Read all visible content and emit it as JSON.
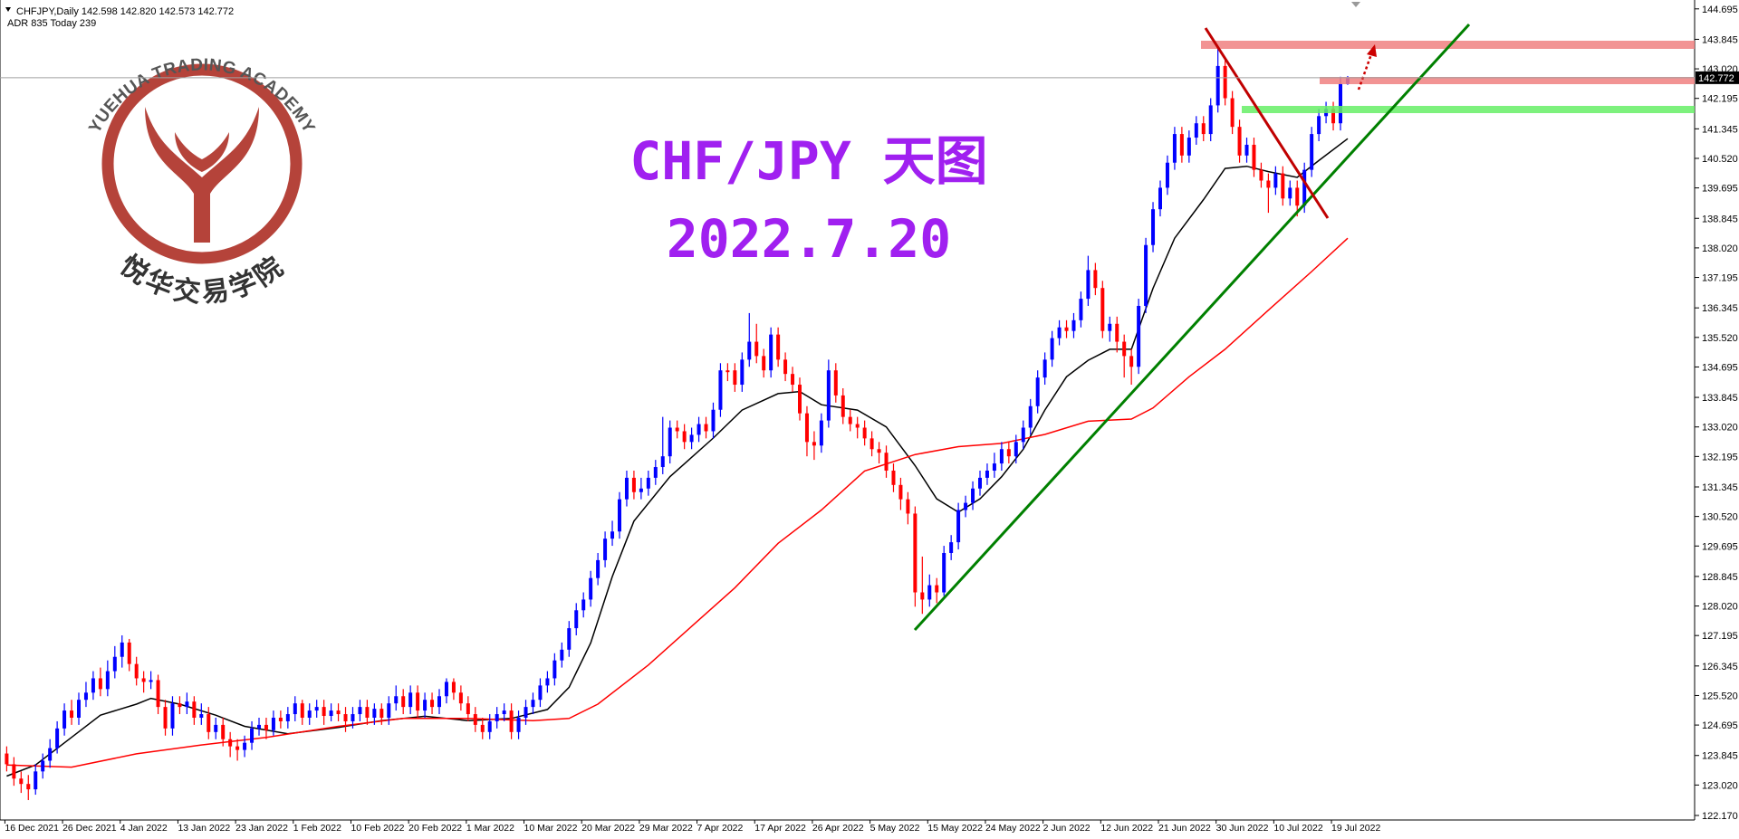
{
  "chart_data": {
    "type": "candlestick",
    "header": "CHFJPY,Daily  142.598 142.820 142.573 142.772",
    "adr": "ADR 835  Today 239",
    "watermark_en": "YUEHUA TRADING ACADEMY",
    "watermark_cn": "悦华交易学院",
    "title": "CHF/JPY 天图",
    "subtitle": "2022.7.20",
    "up_color": "#0000ff",
    "down_color": "#ff0000",
    "categories": [
      "16 Dec 2021",
      null,
      null,
      null,
      null,
      null,
      null,
      null,
      "26 Dec 2021",
      null,
      null,
      null,
      null,
      null,
      null,
      null,
      "4 Jan 2022",
      null,
      null,
      null,
      null,
      null,
      null,
      null,
      "13 Jan 2022",
      null,
      null,
      null,
      null,
      null,
      null,
      null,
      "23 Jan 2022",
      null,
      null,
      null,
      null,
      null,
      null,
      null,
      "1 Feb 2022",
      null,
      null,
      null,
      null,
      null,
      null,
      null,
      "10 Feb 2022",
      null,
      null,
      null,
      null,
      null,
      null,
      null,
      "20 Feb 2022",
      null,
      null,
      null,
      null,
      null,
      null,
      null,
      "1 Mar 2022",
      null,
      null,
      null,
      null,
      null,
      null,
      null,
      "10 Mar 2022",
      null,
      null,
      null,
      null,
      null,
      null,
      null,
      "20 Mar 2022",
      null,
      null,
      null,
      null,
      null,
      null,
      null,
      "29 Mar 2022",
      null,
      null,
      null,
      null,
      null,
      null,
      null,
      "7 Apr 2022",
      null,
      null,
      null,
      null,
      null,
      null,
      null,
      "17 Apr 2022",
      null,
      null,
      null,
      null,
      null,
      null,
      null,
      "26 Apr 2022",
      null,
      null,
      null,
      null,
      null,
      null,
      null,
      "5 May 2022",
      null,
      null,
      null,
      null,
      null,
      null,
      null,
      "15 May 2022",
      null,
      null,
      null,
      null,
      null,
      null,
      null,
      "24 May 2022",
      null,
      null,
      null,
      null,
      null,
      null,
      null,
      "2 Jun 2022",
      null,
      null,
      null,
      null,
      null,
      null,
      null,
      "12 Jun 2022",
      null,
      null,
      null,
      null,
      null,
      null,
      null,
      "21 Jun 2022",
      null,
      null,
      null,
      null,
      null,
      null,
      null,
      "30 Jun 2022",
      null,
      null,
      null,
      null,
      null,
      null,
      null,
      "10 Jul 2022",
      null,
      null,
      null,
      null,
      null,
      null,
      null,
      "19 Jul 2022",
      null,
      null
    ],
    "open": [
      123.9,
      123.6,
      123.2,
      123.05,
      122.9,
      123.4,
      123.7,
      124.05,
      124.6,
      125.1,
      124.9,
      125.4,
      125.6,
      126.0,
      125.7,
      126.2,
      126.6,
      127.0,
      126.4,
      126.0,
      125.9,
      125.95,
      125.2,
      124.6,
      125.3,
      125.2,
      125.35,
      124.9,
      125.0,
      124.5,
      124.7,
      124.3,
      124.1,
      124.0,
      124.2,
      124.6,
      124.7,
      124.55,
      124.9,
      124.8,
      125.0,
      125.3,
      124.9,
      125.1,
      125.2,
      124.95,
      125.1,
      125.0,
      124.8,
      125.0,
      125.2,
      124.9,
      125.15,
      124.9,
      125.3,
      125.5,
      125.2,
      125.6,
      125.1,
      125.4,
      125.2,
      125.5,
      125.9,
      125.6,
      125.3,
      125.0,
      124.7,
      124.5,
      124.8,
      125.0,
      125.1,
      124.5,
      124.9,
      125.2,
      125.4,
      125.8,
      126.0,
      126.5,
      126.8,
      127.4,
      127.9,
      128.2,
      128.8,
      129.3,
      129.9,
      130.1,
      131.0,
      131.6,
      131.2,
      131.3,
      131.6,
      131.9,
      132.2,
      133.0,
      132.9,
      132.6,
      132.8,
      133.1,
      132.9,
      133.5,
      134.6,
      134.6,
      134.2,
      134.9,
      135.4,
      135.0,
      134.6,
      135.6,
      134.9,
      134.5,
      134.2,
      133.4,
      132.6,
      132.5,
      133.2,
      134.6,
      133.9,
      133.3,
      133.1,
      133.0,
      132.7,
      132.4,
      132.3,
      131.8,
      131.4,
      131.0,
      130.6,
      128.4,
      128.2,
      128.6,
      128.4,
      129.5,
      129.8,
      130.7,
      130.9,
      131.3,
      131.6,
      131.8,
      132.0,
      132.4,
      132.2,
      132.6,
      133.0,
      133.6,
      134.4,
      134.9,
      135.5,
      135.8,
      135.7,
      136.0,
      136.6,
      137.4,
      136.9,
      135.7,
      135.9,
      135.4,
      135.0,
      134.7,
      136.4,
      138.1,
      139.1,
      139.7,
      140.4,
      141.2,
      140.6,
      141.1,
      141.5,
      141.2,
      142.0,
      143.1,
      142.2,
      141.4,
      140.6,
      140.9,
      140.2,
      139.9,
      139.7,
      140.1,
      139.4,
      139.7,
      139.2,
      140.2,
      141.2,
      141.7,
      141.9,
      141.5,
      142.598
    ],
    "high": [
      124.1,
      123.8,
      123.4,
      123.3,
      123.6,
      123.9,
      124.3,
      124.8,
      125.3,
      125.4,
      125.6,
      125.9,
      126.2,
      126.3,
      126.5,
      126.9,
      127.2,
      127.1,
      126.6,
      126.2,
      126.2,
      126.1,
      125.4,
      125.5,
      125.5,
      125.6,
      125.5,
      125.3,
      125.2,
      124.9,
      124.9,
      124.5,
      124.3,
      124.4,
      124.8,
      124.9,
      124.9,
      125.1,
      125.1,
      125.2,
      125.5,
      125.4,
      125.3,
      125.4,
      125.4,
      125.3,
      125.3,
      125.2,
      125.2,
      125.4,
      125.4,
      125.3,
      125.3,
      125.5,
      125.8,
      125.7,
      125.8,
      125.8,
      125.6,
      125.6,
      125.7,
      126.0,
      126.0,
      125.8,
      125.5,
      125.2,
      124.9,
      125.0,
      125.2,
      125.3,
      125.3,
      125.1,
      125.4,
      125.6,
      126.0,
      126.2,
      126.7,
      127.0,
      127.6,
      128.1,
      128.4,
      129.0,
      129.5,
      130.1,
      130.4,
      131.2,
      131.8,
      131.8,
      131.6,
      131.8,
      132.1,
      133.3,
      133.2,
      133.2,
      133.1,
      133.0,
      133.3,
      133.3,
      133.7,
      134.8,
      134.8,
      134.8,
      135.1,
      136.2,
      135.9,
      135.2,
      135.8,
      135.8,
      135.1,
      134.7,
      134.4,
      133.6,
      132.9,
      133.4,
      134.9,
      134.8,
      134.1,
      133.5,
      133.3,
      133.2,
      132.9,
      132.6,
      132.5,
      132.0,
      131.6,
      131.2,
      130.8,
      129.4,
      128.9,
      128.8,
      129.7,
      130.0,
      130.9,
      131.1,
      131.5,
      131.8,
      132.0,
      132.3,
      132.6,
      132.6,
      132.8,
      133.2,
      133.8,
      134.6,
      135.1,
      135.7,
      136.0,
      136.0,
      136.2,
      136.8,
      137.8,
      137.6,
      137.1,
      136.1,
      136.1,
      135.6,
      135.2,
      136.6,
      138.3,
      139.3,
      139.9,
      140.6,
      141.4,
      141.4,
      141.3,
      141.7,
      141.7,
      142.2,
      143.6,
      143.3,
      142.4,
      141.6,
      141.1,
      141.1,
      140.4,
      140.1,
      140.3,
      140.3,
      139.9,
      139.9,
      140.4,
      141.4,
      141.9,
      142.1,
      142.1,
      142.8,
      142.82
    ],
    "low": [
      123.4,
      123.0,
      122.8,
      122.6,
      122.75,
      123.2,
      123.5,
      123.9,
      124.4,
      124.7,
      124.7,
      125.2,
      125.4,
      125.5,
      125.5,
      126.0,
      126.3,
      126.2,
      125.8,
      125.6,
      125.7,
      125.0,
      124.4,
      124.4,
      125.0,
      125.0,
      124.7,
      124.7,
      124.3,
      124.3,
      124.1,
      123.8,
      123.7,
      123.8,
      124.0,
      124.4,
      124.3,
      124.4,
      124.6,
      124.6,
      124.8,
      124.7,
      124.7,
      124.9,
      124.7,
      124.8,
      124.8,
      124.5,
      124.6,
      124.8,
      124.7,
      124.7,
      124.7,
      124.7,
      125.1,
      125.0,
      125.0,
      124.9,
      124.9,
      125.0,
      125.0,
      125.3,
      125.4,
      125.1,
      124.8,
      124.5,
      124.3,
      124.3,
      124.6,
      124.8,
      124.3,
      124.3,
      124.7,
      125.0,
      125.2,
      125.6,
      125.8,
      126.3,
      126.6,
      127.2,
      127.7,
      128.0,
      128.6,
      129.1,
      129.7,
      129.9,
      130.8,
      131.0,
      131.0,
      131.1,
      131.4,
      131.7,
      132.0,
      132.7,
      132.4,
      132.4,
      132.6,
      132.7,
      132.7,
      133.3,
      134.3,
      134.0,
      134.0,
      134.7,
      134.8,
      134.4,
      134.4,
      134.7,
      134.3,
      134.0,
      133.2,
      132.2,
      132.1,
      132.3,
      133.0,
      133.7,
      133.1,
      132.9,
      132.7,
      132.5,
      132.2,
      132.0,
      131.6,
      131.2,
      130.7,
      130.3,
      128.0,
      127.8,
      128.0,
      128.1,
      128.3,
      129.3,
      129.6,
      130.5,
      130.7,
      131.1,
      131.4,
      131.6,
      131.8,
      132.0,
      132.0,
      132.4,
      132.8,
      133.4,
      134.2,
      134.7,
      135.3,
      135.5,
      135.5,
      135.8,
      136.4,
      136.7,
      135.5,
      135.4,
      135.1,
      134.4,
      134.2,
      134.5,
      136.2,
      137.9,
      138.9,
      139.5,
      140.2,
      140.4,
      140.4,
      140.9,
      141.0,
      141.0,
      141.8,
      142.0,
      141.2,
      140.4,
      140.4,
      140.0,
      139.7,
      139.0,
      139.5,
      139.2,
      139.2,
      138.9,
      139.0,
      140.0,
      141.0,
      141.5,
      141.3,
      141.3,
      142.573
    ],
    "close": [
      123.6,
      123.2,
      123.05,
      122.9,
      123.4,
      123.7,
      124.05,
      124.6,
      125.1,
      124.9,
      125.4,
      125.6,
      126.0,
      125.7,
      126.2,
      126.6,
      127.0,
      126.4,
      126.0,
      125.9,
      125.95,
      125.2,
      124.6,
      125.3,
      125.2,
      125.35,
      124.9,
      125.0,
      124.5,
      124.7,
      124.3,
      124.1,
      124.0,
      124.2,
      124.6,
      124.7,
      124.55,
      124.9,
      124.8,
      125.0,
      125.3,
      124.9,
      125.1,
      125.2,
      124.95,
      125.1,
      125.0,
      124.8,
      125.0,
      125.2,
      124.9,
      125.15,
      124.9,
      125.3,
      125.5,
      125.2,
      125.6,
      125.1,
      125.4,
      125.2,
      125.5,
      125.9,
      125.6,
      125.3,
      125.0,
      124.7,
      124.5,
      124.8,
      125.0,
      125.1,
      124.5,
      124.9,
      125.2,
      125.4,
      125.8,
      126.0,
      126.5,
      126.8,
      127.4,
      127.9,
      128.2,
      128.8,
      129.3,
      129.9,
      130.1,
      131.0,
      131.6,
      131.2,
      131.3,
      131.6,
      131.9,
      132.2,
      133.0,
      132.9,
      132.6,
      132.8,
      133.1,
      132.9,
      133.5,
      134.6,
      134.55,
      134.2,
      134.9,
      135.4,
      135.0,
      134.6,
      135.6,
      134.9,
      134.5,
      134.2,
      133.4,
      132.6,
      132.5,
      133.2,
      134.6,
      133.9,
      133.3,
      133.1,
      133.0,
      132.7,
      132.4,
      132.3,
      131.8,
      131.4,
      131.0,
      130.6,
      128.4,
      128.2,
      128.6,
      128.4,
      129.5,
      129.8,
      130.7,
      130.9,
      131.3,
      131.6,
      131.8,
      132.0,
      132.4,
      132.2,
      132.6,
      133.0,
      133.6,
      134.4,
      134.9,
      135.5,
      135.8,
      135.7,
      136.0,
      136.6,
      137.4,
      136.9,
      135.7,
      135.9,
      135.4,
      135.0,
      134.7,
      136.4,
      138.1,
      139.1,
      139.7,
      140.4,
      141.2,
      140.6,
      141.1,
      141.5,
      141.2,
      142.0,
      143.1,
      142.2,
      141.4,
      140.6,
      140.9,
      140.2,
      139.9,
      139.7,
      140.1,
      139.4,
      139.7,
      139.2,
      140.2,
      141.2,
      141.7,
      141.9,
      141.5,
      142.6,
      142.772
    ],
    "ma_lines": [
      {
        "color": "#000000",
        "x": [
          0,
          4,
          9,
          13,
          18,
          20,
          24,
          29,
          33,
          39,
          46,
          52,
          58,
          64,
          70,
          75,
          78,
          81,
          84,
          87,
          92,
          98,
          102,
          107,
          110,
          113,
          118,
          122,
          126,
          129,
          132,
          135,
          138,
          141,
          144,
          147,
          150,
          153,
          156,
          159,
          162,
          166,
          169,
          172,
          175,
          179,
          182,
          186
        ],
        "values": [
          123.27,
          123.58,
          124.35,
          124.97,
          125.28,
          125.44,
          125.28,
          124.97,
          124.66,
          124.45,
          124.63,
          124.82,
          124.94,
          124.82,
          124.88,
          125.13,
          125.75,
          126.99,
          128.84,
          130.39,
          131.63,
          132.71,
          133.49,
          133.95,
          134.01,
          133.64,
          133.49,
          133.02,
          131.94,
          131.01,
          130.64,
          131.01,
          131.63,
          132.4,
          133.49,
          134.42,
          134.88,
          135.19,
          135.19,
          136.89,
          138.29,
          139.37,
          140.24,
          140.3,
          140.15,
          139.99,
          140.46,
          141.07
        ]
      },
      {
        "color": "#ff0000",
        "x": [
          0,
          9,
          18,
          27,
          36,
          46,
          55,
          64,
          73,
          78,
          82,
          89,
          95,
          101,
          107,
          113,
          119,
          126,
          132,
          138,
          144,
          150,
          156,
          159,
          164,
          169,
          175,
          181,
          186
        ],
        "values": [
          123.58,
          123.52,
          123.89,
          124.14,
          124.35,
          124.66,
          124.88,
          124.88,
          124.82,
          124.88,
          125.28,
          126.37,
          127.45,
          128.53,
          129.77,
          130.7,
          131.79,
          132.25,
          132.47,
          132.56,
          132.81,
          133.18,
          133.24,
          133.55,
          134.42,
          135.19,
          136.28,
          137.36,
          138.29
        ]
      }
    ],
    "last_price": 142.772,
    "ylim": [
      122.17,
      144.695
    ],
    "yticks": [
      {
        "value": 122.17,
        "label": "122.170"
      },
      {
        "value": 123.02,
        "label": "123.020"
      },
      123.845,
      124.695,
      {
        "value": 125.52,
        "label": "125.520"
      },
      126.345,
      127.195,
      {
        "value": 128.02,
        "label": "128.020"
      },
      128.845,
      129.695,
      {
        "value": 130.52,
        "label": "130.520"
      },
      131.345,
      132.195,
      {
        "value": 133.02,
        "label": "133.020"
      },
      133.845,
      134.695,
      {
        "value": 135.52,
        "label": "135.520"
      },
      136.345,
      137.195,
      {
        "value": 138.02,
        "label": "138.020"
      },
      138.845,
      139.695,
      {
        "value": 140.52,
        "label": "140.520"
      },
      141.345,
      142.195,
      {
        "value": 143.02,
        "label": "143.020"
      },
      143.845,
      144.695
    ]
  }
}
